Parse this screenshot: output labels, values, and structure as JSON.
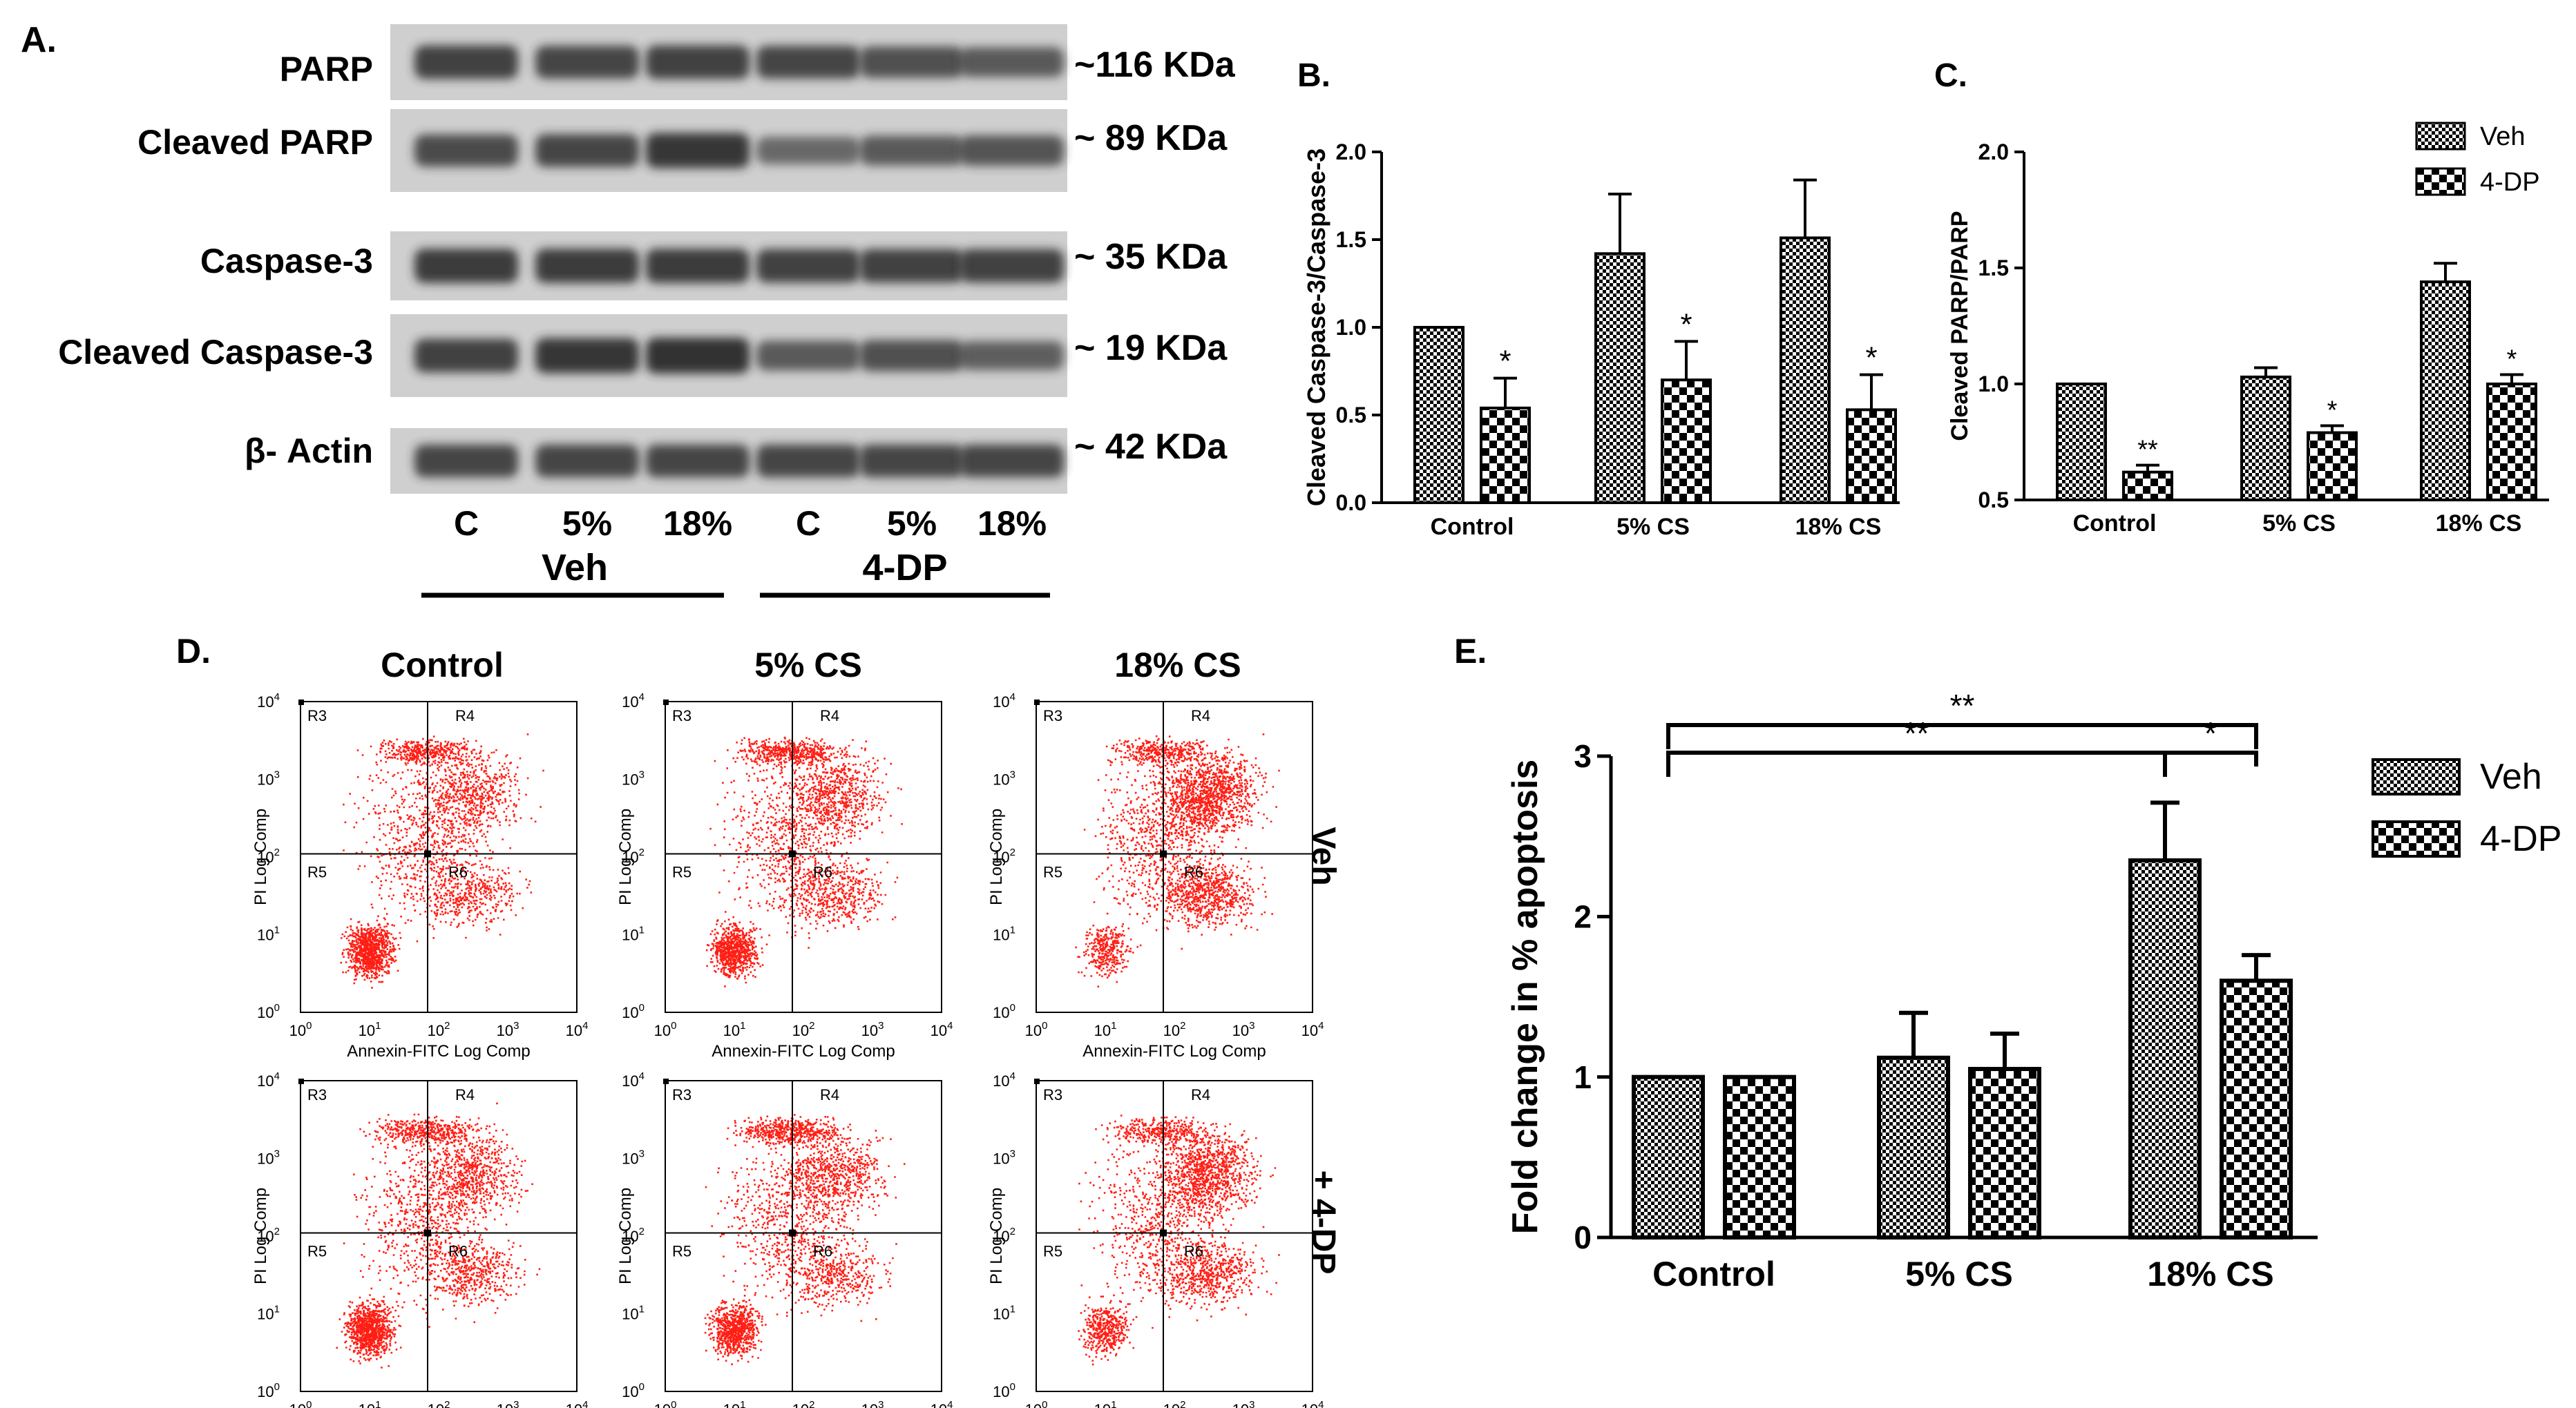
{
  "colors": {
    "dot": "#ff1e14",
    "blot_bg": "#cfcfcf",
    "band": "#2a2a2a",
    "axis": "#000000"
  },
  "panelA": {
    "label": "A.",
    "rows": [
      {
        "name": "PARP",
        "kda": "~116 KDa",
        "intensities": [
          0.85,
          0.8,
          0.85,
          0.8,
          0.7,
          0.6
        ]
      },
      {
        "name": "Cleaved PARP",
        "kda": "~ 89 KDa",
        "intensities": [
          0.75,
          0.8,
          0.95,
          0.45,
          0.6,
          0.65
        ]
      },
      {
        "name": "Caspase-3",
        "kda": "~ 35 KDa",
        "intensities": [
          0.9,
          0.9,
          0.9,
          0.85,
          0.85,
          0.85
        ]
      },
      {
        "name": "Cleaved Caspase-3",
        "kda": "~ 19 KDa",
        "intensities": [
          0.85,
          0.95,
          1.0,
          0.6,
          0.7,
          0.55
        ]
      },
      {
        "name": "β- Actin",
        "kda": "~ 42 KDa",
        "intensities": [
          0.8,
          0.8,
          0.8,
          0.8,
          0.8,
          0.8
        ]
      }
    ],
    "lanes": [
      "C",
      "5%",
      "18%",
      "C",
      "5%",
      "18%"
    ],
    "groups": [
      "Veh",
      "4-DP"
    ]
  },
  "flow": {
    "label": "D.",
    "col_titles": [
      "Control",
      "5% CS",
      "18% CS"
    ],
    "row_labels": [
      "Veh",
      "+ 4-DP"
    ],
    "xlabel": "Annexin-FITC Log Comp",
    "ylabel": "PI Log Comp",
    "ticks": [
      "10",
      "10",
      "10",
      "10",
      "10"
    ],
    "tick_exps": [
      "0",
      "1",
      "2",
      "3",
      "4"
    ],
    "regions": [
      "R3",
      "R4",
      "R5",
      "R6"
    ],
    "density": [
      [
        {
          "ll": 0.55,
          "ul": 0.3,
          "ur": 0.35,
          "lr": 0.3
        },
        {
          "ll": 0.45,
          "ul": 0.35,
          "ur": 0.4,
          "lr": 0.35
        },
        {
          "ll": 0.2,
          "ul": 0.25,
          "ur": 0.75,
          "lr": 0.55
        }
      ],
      [
        {
          "ll": 0.55,
          "ul": 0.3,
          "ur": 0.4,
          "lr": 0.35
        },
        {
          "ll": 0.45,
          "ul": 0.35,
          "ur": 0.4,
          "lr": 0.3
        },
        {
          "ll": 0.25,
          "ul": 0.25,
          "ur": 0.6,
          "lr": 0.45
        }
      ]
    ]
  },
  "chart_data": [
    {
      "id": "B",
      "label": "B.",
      "type": "bar",
      "categories": [
        "Control",
        "5% CS",
        "18% CS"
      ],
      "series": [
        {
          "name": "Veh",
          "values": [
            1.0,
            1.42,
            1.51
          ],
          "errors": [
            0,
            0.34,
            0.33
          ]
        },
        {
          "name": "4-DP",
          "values": [
            0.54,
            0.7,
            0.53
          ],
          "errors": [
            0.17,
            0.22,
            0.2
          ]
        }
      ],
      "significance": [
        [
          "",
          "*"
        ],
        [
          "",
          "*"
        ],
        [
          "",
          "*"
        ]
      ],
      "ylabel": "Cleaved Caspase-3/Caspase-3",
      "ylim": [
        0.0,
        2.0
      ],
      "yticks": [
        "0.0",
        "0.5",
        "1.0",
        "1.5",
        "2.0"
      ]
    },
    {
      "id": "C",
      "label": "C.",
      "type": "bar",
      "categories": [
        "Control",
        "5% CS",
        "18% CS"
      ],
      "series": [
        {
          "name": "Veh",
          "values": [
            1.0,
            1.03,
            1.44
          ],
          "errors": [
            0,
            0.04,
            0.08
          ]
        },
        {
          "name": "4-DP",
          "values": [
            0.62,
            0.79,
            1.0
          ],
          "errors": [
            0.03,
            0.03,
            0.04
          ]
        }
      ],
      "significance": [
        [
          "",
          "**"
        ],
        [
          "",
          "*"
        ],
        [
          "",
          "*"
        ]
      ],
      "ylabel": "Cleaved PARP/PARP",
      "ylim": [
        0.5,
        2.0
      ],
      "yticks": [
        "0.5",
        "1.0",
        "1.5",
        "2.0"
      ],
      "legend": [
        "Veh",
        "4-DP"
      ]
    },
    {
      "id": "E",
      "label": "E.",
      "type": "bar",
      "categories": [
        "Control",
        "5% CS",
        "18% CS"
      ],
      "series": [
        {
          "name": "Veh",
          "values": [
            1.0,
            1.12,
            2.35
          ],
          "errors": [
            0,
            0.28,
            0.36
          ]
        },
        {
          "name": "4-DP",
          "values": [
            1.0,
            1.05,
            1.6
          ],
          "errors": [
            0,
            0.22,
            0.16
          ]
        }
      ],
      "ylabel": "Fold change in % apoptosis",
      "ylim": [
        0,
        3
      ],
      "yticks": [
        "0",
        "1",
        "2",
        "3"
      ],
      "legend": [
        "Veh",
        "4-DP"
      ],
      "brackets": [
        {
          "from": "Control Veh",
          "to": "18% CS 4-DP",
          "label": "**"
        },
        {
          "from": "Control Veh",
          "to": "18% CS Veh",
          "label": "**"
        },
        {
          "from": "18% CS Veh",
          "to": "18% CS 4-DP",
          "label": "*"
        }
      ]
    }
  ]
}
